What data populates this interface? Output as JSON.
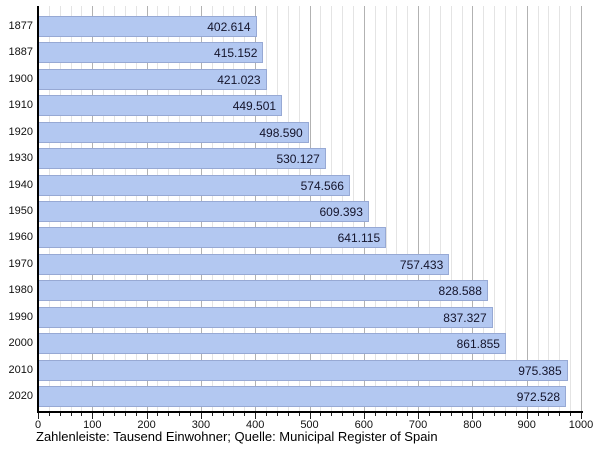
{
  "chart_data": {
    "type": "bar",
    "orientation": "horizontal",
    "title": "",
    "xlabel": "",
    "ylabel": "",
    "categories": [
      "1877",
      "1887",
      "1900",
      "1910",
      "1920",
      "1930",
      "1940",
      "1950",
      "1960",
      "1970",
      "1980",
      "1990",
      "2000",
      "2010",
      "2020"
    ],
    "values": [
      402.614,
      415.152,
      421.023,
      449.501,
      498.59,
      530.127,
      574.566,
      609.393,
      641.115,
      757.433,
      828.588,
      837.327,
      861.855,
      975.385,
      972.528
    ],
    "value_labels": [
      "402.614",
      "415.152",
      "421.023",
      "449.501",
      "498.590",
      "530.127",
      "574.566",
      "609.393",
      "641.115",
      "757.433",
      "828.588",
      "837.327",
      "861.855",
      "975.385",
      "972.528"
    ],
    "xlim": [
      0,
      1000
    ],
    "x_tick_labels": [
      "0",
      "100",
      "200",
      "300",
      "400",
      "500",
      "600",
      "700",
      "800",
      "900",
      "1000"
    ],
    "x_major_step": 100,
    "x_minor_step": 20,
    "grid": true,
    "legend_position": "none",
    "caption": "Zahlenleiste: Tausend Einwohner; Quelle: Municipal Register of Spain",
    "colors": {
      "bar_fill": "#b3c8f1",
      "bar_border": "#97a9d4",
      "axis": "#000000",
      "major_grid": "#b2b2b2",
      "minor_grid": "#e4e4e4",
      "bar_label_text": "#14142b",
      "tick_label_text": "#111111"
    }
  }
}
